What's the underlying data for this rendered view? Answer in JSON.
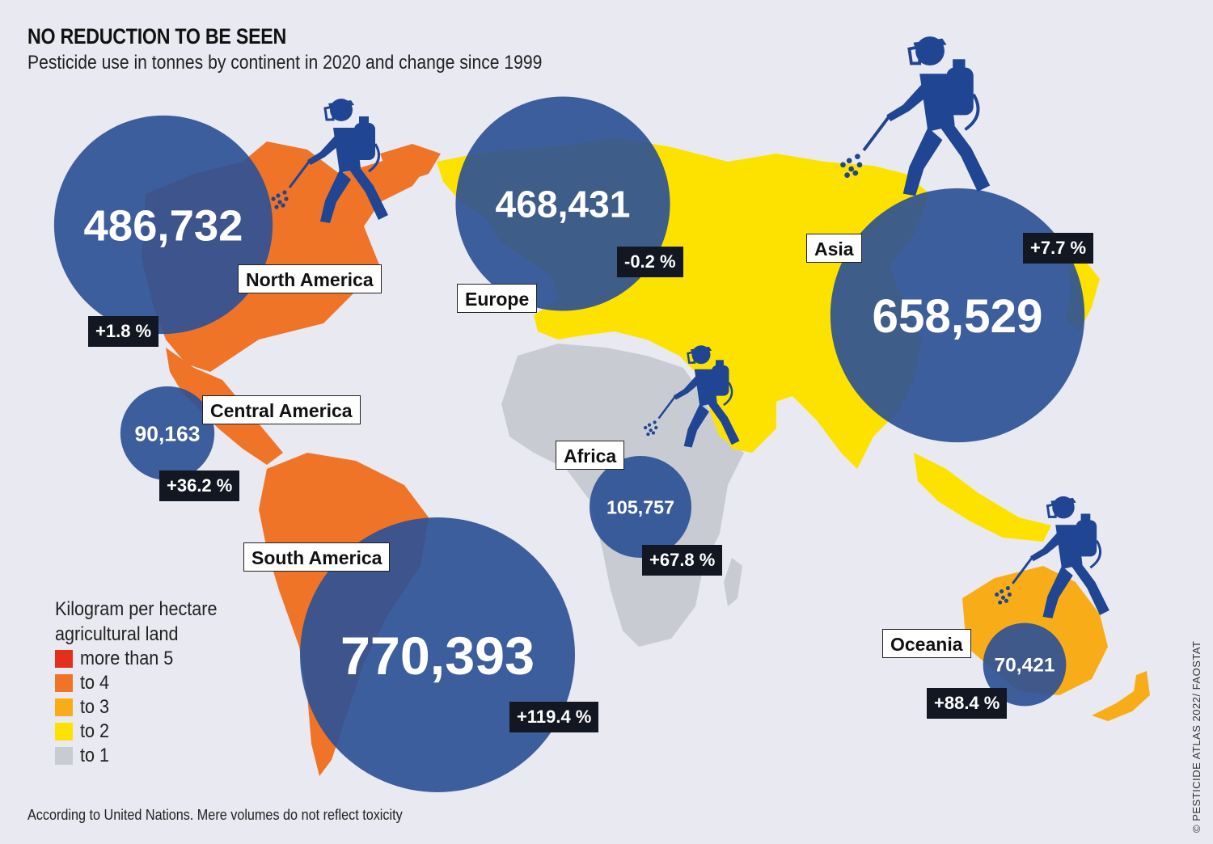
{
  "title": "NO REDUCTION TO BE SEEN",
  "subtitle": "Pesticide use in tonnes by continent in 2020 and change since 1999",
  "footnote": "According to United Nations. Mere volumes do not reflect toxicity",
  "source": "© PESTICIDE ATLAS 2022/ FAOSTAT",
  "legend": {
    "title": "Kilogram per hectare agricultural land",
    "items": [
      {
        "label": "more than 5",
        "color": "#e3301c"
      },
      {
        "label": "to 4",
        "color": "#ef7428"
      },
      {
        "label": "to 3",
        "color": "#f8ad18"
      },
      {
        "label": "to 2",
        "color": "#fde200"
      },
      {
        "label": "to 1",
        "color": "#c8ccd2"
      }
    ]
  },
  "colors": {
    "bubble": "#2e5195",
    "background": "#e9e9f1",
    "sprayer_icon": "#1f4593"
  },
  "continents": [
    {
      "name": "North America",
      "tonnes": "486,732",
      "change": "+1.8 %",
      "value": 486732,
      "change_pct": 1.8,
      "category": "to 4"
    },
    {
      "name": "Europe",
      "tonnes": "468,431",
      "change": "-0.2 %",
      "value": 468431,
      "change_pct": -0.2,
      "category": "to 2"
    },
    {
      "name": "Asia",
      "tonnes": "658,529",
      "change": "+7.7 %",
      "value": 658529,
      "change_pct": 7.7,
      "category": "to 2"
    },
    {
      "name": "Central America",
      "tonnes": "90,163",
      "change": "+36.2 %",
      "value": 90163,
      "change_pct": 36.2,
      "category": "to 4"
    },
    {
      "name": "Africa",
      "tonnes": "105,757",
      "change": "+67.8 %",
      "value": 105757,
      "change_pct": 67.8,
      "category": "to 1"
    },
    {
      "name": "South America",
      "tonnes": "770,393",
      "change": "+119.4 %",
      "value": 770393,
      "change_pct": 119.4,
      "category": "to 4"
    },
    {
      "name": "Oceania",
      "tonnes": "70,421",
      "change": "+88.4 %",
      "value": 70421,
      "change_pct": 88.4,
      "category": "to 3"
    }
  ]
}
